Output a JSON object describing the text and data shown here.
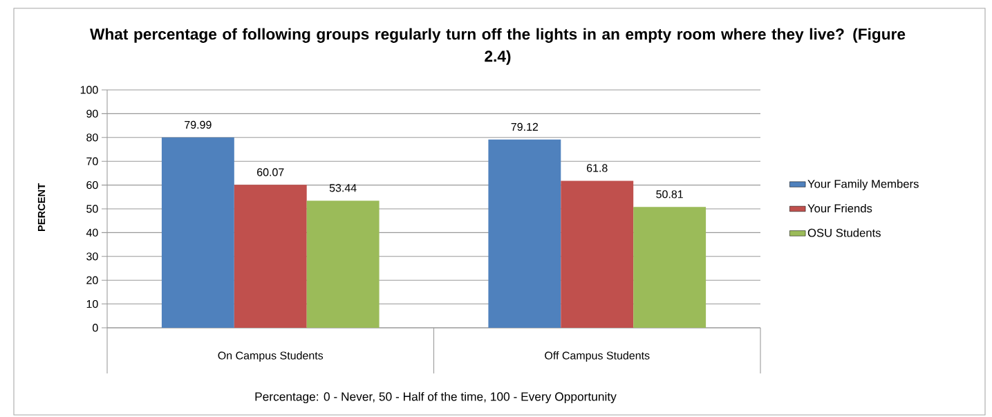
{
  "chart_data": {
    "type": "bar",
    "title": "What percentage of following groups regularly turn off the lights in an empty room where they live? (Figure 2.4)",
    "ylabel": "PERCENT",
    "categories": [
      "On Campus Students",
      "Off Campus Students"
    ],
    "series": [
      {
        "name": "Your Family Members",
        "color": "#4f81bd",
        "values": [
          79.99,
          79.12
        ]
      },
      {
        "name": "Your Friends",
        "color": "#c0504d",
        "values": [
          60.07,
          61.8
        ]
      },
      {
        "name": "OSU Students",
        "color": "#9bbb59",
        "values": [
          53.44,
          50.81
        ]
      }
    ],
    "ylim": [
      0,
      100
    ],
    "yticks": [
      0,
      10,
      20,
      30,
      40,
      50,
      60,
      70,
      80,
      90,
      100
    ],
    "grid": "y",
    "legend": "right",
    "data_labels": true,
    "annotations": [
      "Percentage: 0 - Never, 50 - Half of the time, 100 - Every Opportunity"
    ]
  }
}
